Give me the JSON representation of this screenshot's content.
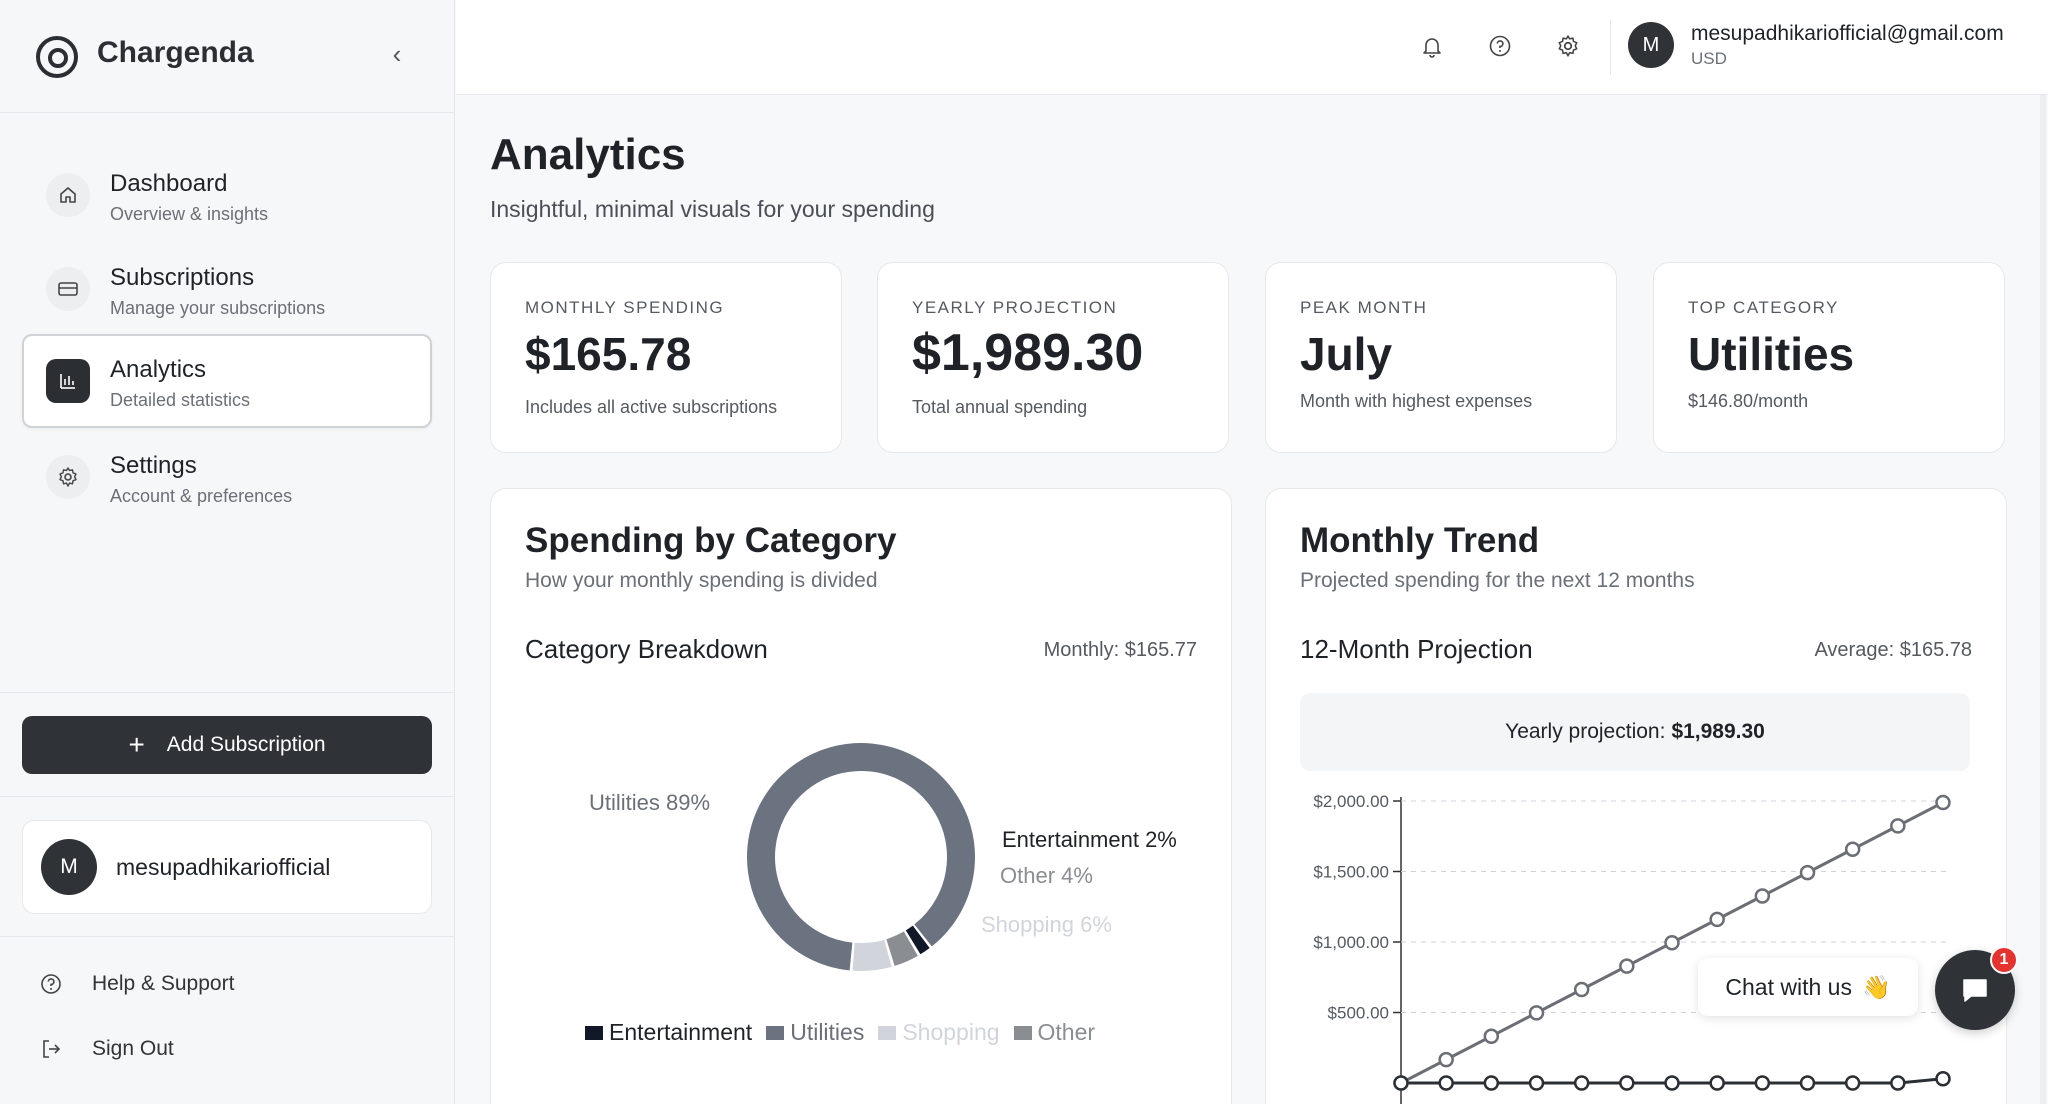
{
  "brand": {
    "name": "Chargenda"
  },
  "sidebar": {
    "items": [
      {
        "title": "Dashboard",
        "subtitle": "Overview & insights",
        "icon": "home-icon"
      },
      {
        "title": "Subscriptions",
        "subtitle": "Manage your subscriptions",
        "icon": "card-icon"
      },
      {
        "title": "Analytics",
        "subtitle": "Detailed statistics",
        "icon": "bar-chart-icon"
      },
      {
        "title": "Settings",
        "subtitle": "Account & preferences",
        "icon": "gear-icon"
      }
    ],
    "add_button": "Add Subscription",
    "user_initial": "M",
    "user_name": "mesupadhikariofficial",
    "help": "Help & Support",
    "signout": "Sign Out"
  },
  "topbar": {
    "avatar_initial": "M",
    "email": "mesupadhikariofficial@gmail.com",
    "currency": "USD"
  },
  "page": {
    "title": "Analytics",
    "subtitle": "Insightful, minimal visuals for your spending"
  },
  "stats": [
    {
      "label": "MONTHLY SPENDING",
      "value": "$165.78",
      "desc": "Includes all active subscriptions"
    },
    {
      "label": "YEARLY PROJECTION",
      "value": "$1,989.30",
      "desc": "Total annual spending"
    },
    {
      "label": "PEAK MONTH",
      "value": "July",
      "desc": "Month with highest expenses"
    },
    {
      "label": "TOP CATEGORY",
      "value": "Utilities",
      "desc": "$146.80/month"
    }
  ],
  "category_panel": {
    "title": "Spending by Category",
    "subtitle": "How your monthly spending is divided",
    "heading": "Category Breakdown",
    "monthly": "Monthly: $165.77"
  },
  "trend_panel": {
    "title": "Monthly Trend",
    "subtitle": "Projected spending for the next 12 months",
    "heading": "12-Month Projection",
    "average": "Average: $165.78",
    "projection_label": "Yearly projection:",
    "projection_value": "$1,989.30"
  },
  "chat": {
    "label": "Chat with us",
    "emoji": "👋",
    "badge": "1"
  },
  "chart_data": [
    {
      "type": "pie",
      "title": "Category Breakdown",
      "categories": [
        "Utilities",
        "Entertainment",
        "Other",
        "Shopping"
      ],
      "values": [
        89,
        2,
        4,
        6
      ],
      "slice_labels": [
        "Utilities 89%",
        "Entertainment 2%",
        "Other 4%",
        "Shopping 6%"
      ],
      "colors": [
        "#6b7280",
        "#111827",
        "#8a8d91",
        "#d1d5db"
      ],
      "legend": [
        {
          "name": "Entertainment",
          "color": "#111827"
        },
        {
          "name": "Utilities",
          "color": "#6b7280"
        },
        {
          "name": "Shopping",
          "color": "#d1d5db"
        },
        {
          "name": "Other",
          "color": "#8a8d91"
        }
      ],
      "legend_placement": "bottom"
    },
    {
      "type": "line",
      "title": "12-Month Projection",
      "x": [
        1,
        2,
        3,
        4,
        5,
        6,
        7,
        8,
        9,
        10,
        11,
        12,
        13
      ],
      "series": [
        {
          "values": [
            0,
            165.78,
            331.55,
            497.33,
            663.1,
            828.88,
            994.65,
            1160.43,
            1326.2,
            1491.98,
            1657.75,
            1823.53,
            1989.3
          ],
          "color": "#6b6f75"
        },
        {
          "values": [
            0,
            0,
            0,
            0,
            0,
            0,
            0,
            0,
            0,
            0,
            0,
            0,
            30
          ],
          "color": "#2b2f34"
        }
      ],
      "yticks": [
        "$2,000.00",
        "$1,500.00",
        "$1,000.00",
        "$500.00"
      ],
      "ytick_values": [
        2000,
        1500,
        1000,
        500
      ],
      "ylim": [
        0,
        2000
      ],
      "grid": true
    }
  ]
}
